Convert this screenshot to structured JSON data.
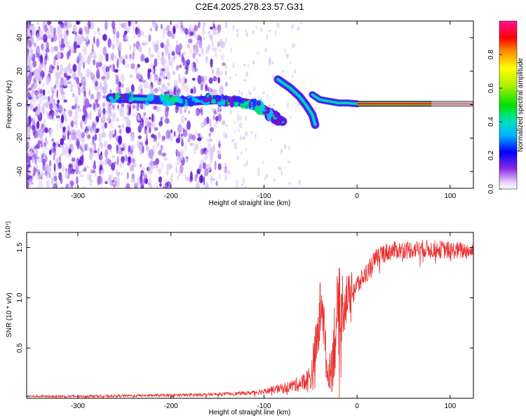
{
  "title": "C2E4.2025.278.23.57.G31",
  "colors": {
    "snr_line": "#e8302e",
    "blob_light": "#d9c6f5",
    "blob_mid": "#9b58e8",
    "blob_dark": "#5a10d8"
  },
  "chart_data": [
    {
      "type": "heatmap",
      "title": "C2E4.2025.278.23.57.G31",
      "xlabel": "Height of straight line (km)",
      "ylabel": "Frequency (Hz)",
      "xlim": [
        -355,
        125
      ],
      "ylim": [
        -50,
        50
      ],
      "xticks": [
        -300,
        -200,
        -100,
        0,
        100
      ],
      "xtick_labels": [
        "-300",
        "-200",
        "-100",
        "0",
        "100"
      ],
      "yticks": [
        -40,
        -20,
        0,
        20,
        40
      ],
      "ytick_labels": [
        "-40",
        "-20",
        "0",
        "20",
        "40"
      ],
      "grid": false,
      "ridge": {
        "main": [
          [
            -265,
            4
          ],
          [
            -220,
            3
          ],
          [
            -180,
            2
          ],
          [
            -150,
            3
          ],
          [
            -130,
            2
          ],
          [
            -110,
            0
          ],
          [
            -100,
            -3
          ],
          [
            -90,
            -7
          ],
          [
            -80,
            -10
          ]
        ],
        "upper_branch": [
          [
            -85,
            15
          ],
          [
            -72,
            10
          ],
          [
            -62,
            5
          ],
          [
            -55,
            0
          ],
          [
            -48,
            -6
          ],
          [
            -45,
            -12
          ]
        ],
        "descending_branch": [
          [
            -48,
            6
          ],
          [
            -40,
            3
          ],
          [
            -30,
            2
          ],
          [
            -20,
            1
          ],
          [
            -10,
            1
          ],
          [
            0,
            0.5
          ]
        ],
        "steady_line": [
          [
            0,
            0.5
          ],
          [
            125,
            0.5
          ]
        ]
      },
      "colorbar": {
        "label": "Normalized spectral amplitude",
        "range": [
          0,
          1
        ],
        "ticks": [
          0.0,
          0.2,
          0.4,
          0.6,
          0.8
        ],
        "tick_labels": [
          "0.0",
          "0.2",
          "0.4",
          "0.6",
          "0.8"
        ]
      }
    },
    {
      "type": "line",
      "xlabel": "Height of straight line (km)",
      "ylabel": "SNR (10 * v/v)",
      "y_multiplier": "(x10⁴)",
      "xlim": [
        -355,
        125
      ],
      "ylim": [
        0,
        1.65
      ],
      "xticks": [
        -300,
        -200,
        -100,
        0,
        100
      ],
      "xtick_labels": [
        "-300",
        "-200",
        "-100",
        "0",
        "100"
      ],
      "yticks": [
        0.5,
        1.0,
        1.5
      ],
      "ytick_labels": [
        "0.5",
        "1.0",
        "1.5"
      ],
      "grid": false,
      "series": [
        {
          "name": "SNR",
          "x": [
            -355,
            -300,
            -250,
            -200,
            -150,
            -120,
            -100,
            -80,
            -60,
            -50,
            -45,
            -40,
            -38,
            -35,
            -32,
            -30,
            -27,
            -25,
            -22,
            -20,
            -18,
            -15,
            -12,
            -10,
            -7,
            -5,
            -2,
            0,
            5,
            10,
            15,
            20,
            25,
            30,
            40,
            50,
            60,
            70,
            80,
            90,
            100,
            110,
            125
          ],
          "y_base": [
            0.02,
            0.02,
            0.025,
            0.03,
            0.04,
            0.05,
            0.07,
            0.1,
            0.15,
            0.2,
            0.4,
            0.8,
            1.1,
            0.6,
            0.25,
            0.25,
            0.35,
            0.55,
            0.75,
            0.85,
            0.9,
            0.95,
            1.0,
            0.98,
            1.05,
            1.08,
            1.1,
            1.12,
            1.18,
            1.25,
            1.32,
            1.38,
            1.43,
            1.45,
            1.47,
            1.48,
            1.48,
            1.49,
            1.48,
            1.48,
            1.47,
            1.47,
            1.47
          ],
          "y_noise": [
            0.01,
            0.012,
            0.012,
            0.015,
            0.015,
            0.02,
            0.03,
            0.05,
            0.08,
            0.15,
            0.3,
            0.35,
            0.35,
            0.3,
            0.15,
            0.15,
            0.3,
            0.4,
            0.45,
            0.45,
            0.4,
            0.35,
            0.3,
            0.25,
            0.2,
            0.18,
            0.15,
            0.12,
            0.1,
            0.1,
            0.1,
            0.1,
            0.1,
            0.1,
            0.09,
            0.09,
            0.09,
            0.09,
            0.09,
            0.09,
            0.09,
            0.09,
            0.09
          ]
        }
      ]
    }
  ]
}
